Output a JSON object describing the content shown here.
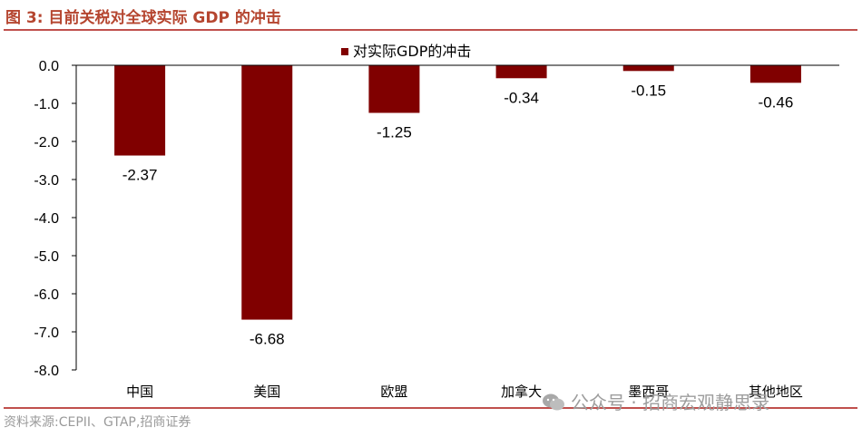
{
  "figure": {
    "title": "图 3:  目前关税对全球实际 GDP 的冲击",
    "source": "资料来源:CEPII、GTAP,招商证券",
    "watermark": "公众号 · 招商宏观静思录"
  },
  "colors": {
    "bar": "#800000",
    "accent": "#c0504d",
    "title": "#b5452f"
  },
  "chart_data": {
    "type": "bar",
    "title": "",
    "categories": [
      "中国",
      "美国",
      "欧盟",
      "加拿大",
      "墨西哥",
      "其他地区"
    ],
    "series": [
      {
        "name": "对实际GDP的冲击",
        "values": [
          -2.37,
          -6.68,
          -1.25,
          -0.34,
          -0.15,
          -0.46
        ]
      }
    ],
    "data_labels": [
      "-2.37",
      "-6.68",
      "-1.25",
      "-0.34",
      "-0.15",
      "-0.46"
    ],
    "yticks": [
      "0.0",
      "-1.0",
      "-2.0",
      "-3.0",
      "-4.0",
      "-5.0",
      "-6.0",
      "-7.0",
      "-8.0"
    ],
    "ylim": [
      -8.0,
      0.0
    ],
    "xlabel": "",
    "ylabel": "",
    "grid": false,
    "legend_position": "top-center"
  }
}
